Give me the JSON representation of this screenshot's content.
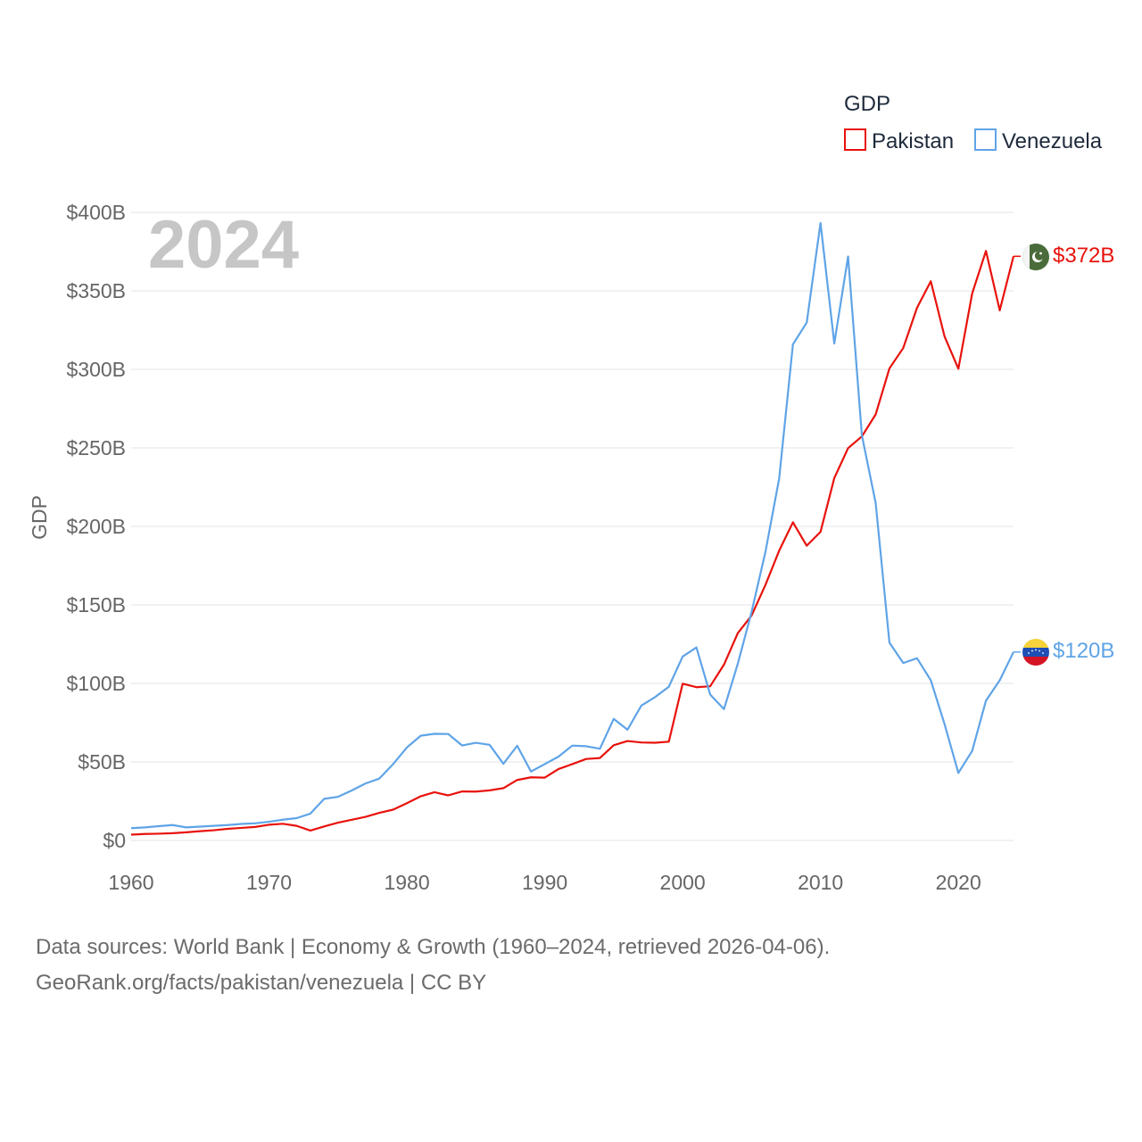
{
  "chart_data": {
    "type": "line",
    "legend_title": "GDP",
    "ylabel": "GDP",
    "year_label": "2024",
    "ylim": [
      0,
      400
    ],
    "xlim": [
      1960,
      2024
    ],
    "y_ticks": [
      0,
      50,
      100,
      150,
      200,
      250,
      300,
      350,
      400
    ],
    "y_tick_labels": [
      "$0",
      "$50B",
      "$100B",
      "$150B",
      "$200B",
      "$250B",
      "$300B",
      "$350B",
      "$400B"
    ],
    "x_ticks": [
      1960,
      1970,
      1980,
      1990,
      2000,
      2010,
      2020
    ],
    "x_tick_labels": [
      "1960",
      "1970",
      "1980",
      "1990",
      "2000",
      "2010",
      "2020"
    ],
    "x": [
      1960,
      1961,
      1962,
      1963,
      1964,
      1965,
      1966,
      1967,
      1968,
      1969,
      1970,
      1971,
      1972,
      1973,
      1974,
      1975,
      1976,
      1977,
      1978,
      1979,
      1980,
      1981,
      1982,
      1983,
      1984,
      1985,
      1986,
      1987,
      1988,
      1989,
      1990,
      1991,
      1992,
      1993,
      1994,
      1995,
      1996,
      1997,
      1998,
      1999,
      2000,
      2001,
      2002,
      2003,
      2004,
      2005,
      2006,
      2007,
      2008,
      2009,
      2010,
      2011,
      2012,
      2013,
      2014,
      2015,
      2016,
      2017,
      2018,
      2019,
      2020,
      2021,
      2022,
      2023,
      2024
    ],
    "series": [
      {
        "name": "Pakistan",
        "color": "#e8120c",
        "end_label": "$372B",
        "values": [
          3.7,
          4.1,
          4.3,
          4.6,
          5.2,
          5.9,
          6.5,
          7.4,
          8.0,
          8.6,
          10.0,
          10.6,
          9.3,
          6.3,
          8.9,
          11.3,
          13.2,
          15.0,
          17.6,
          19.6,
          23.7,
          28.1,
          30.7,
          28.7,
          31.2,
          31.1,
          31.9,
          33.3,
          38.5,
          40.2,
          40.0,
          45.5,
          48.6,
          51.9,
          52.5,
          60.6,
          63.3,
          62.4,
          62.2,
          62.9,
          99.8,
          97.6,
          98.2,
          112.0,
          132.0,
          143.2,
          162.6,
          184.5,
          202.6,
          187.7,
          196.5,
          230.8,
          249.8,
          257.3,
          271.3,
          300.6,
          313.6,
          339.2,
          356.1,
          320.9,
          300.4,
          348.3,
          375.4,
          337.6,
          372.0
        ]
      },
      {
        "name": "Venezuela",
        "color": "#5fa4e7",
        "end_label": "$120B",
        "values": [
          7.8,
          8.3,
          9.1,
          9.8,
          8.3,
          8.8,
          9.3,
          9.8,
          10.5,
          10.9,
          11.9,
          13.2,
          14.2,
          17.1,
          26.5,
          27.8,
          31.8,
          36.3,
          39.4,
          48.6,
          59.2,
          66.7,
          67.9,
          67.8,
          60.5,
          62.2,
          60.9,
          48.8,
          60.3,
          43.9,
          48.6,
          53.4,
          60.4,
          60.0,
          58.4,
          77.4,
          70.5,
          85.8,
          91.3,
          97.9,
          117.1,
          122.9,
          92.9,
          83.6,
          112.5,
          145.5,
          183.5,
          230.4,
          315.9,
          329.8,
          393.2,
          316.5,
          371.9,
          258.0,
          215.0,
          126.0,
          113.0,
          116.0,
          102.0,
          74.0,
          43.0,
          57.0,
          89.0,
          102.0,
          120.0
        ]
      }
    ]
  },
  "footer": {
    "line1": "Data sources: World Bank | Economy & Growth (1960–2024, retrieved 2026-04-06).",
    "line2": "GeoRank.org/facts/pakistan/venezuela | CC BY"
  }
}
